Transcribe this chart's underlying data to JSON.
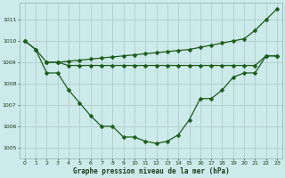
{
  "title": "Graphe pression niveau de la mer (hPa)",
  "background_color": "#cdeaea",
  "grid_color": "#b0cccc",
  "line_color": "#1a5c1a",
  "xlim": [
    -0.5,
    23.5
  ],
  "ylim": [
    1004.5,
    1011.8
  ],
  "yticks": [
    1005,
    1006,
    1007,
    1008,
    1009,
    1010,
    1011
  ],
  "xticks": [
    0,
    1,
    2,
    3,
    4,
    5,
    6,
    7,
    8,
    9,
    10,
    11,
    12,
    13,
    14,
    15,
    16,
    17,
    18,
    19,
    20,
    21,
    22,
    23
  ],
  "line1_x": [
    0,
    1,
    2,
    3,
    4,
    5,
    6,
    7,
    8,
    9,
    10,
    11,
    12,
    13,
    14,
    15,
    16,
    17,
    18,
    19,
    20,
    21,
    22,
    23
  ],
  "line1_y": [
    1010.0,
    1009.6,
    1009.0,
    1009.0,
    1009.05,
    1009.1,
    1009.15,
    1009.2,
    1009.25,
    1009.3,
    1009.35,
    1009.4,
    1009.45,
    1009.5,
    1009.55,
    1009.6,
    1009.7,
    1009.8,
    1009.9,
    1010.0,
    1010.1,
    1010.5,
    1011.0,
    1011.5
  ],
  "line2_x": [
    2,
    3,
    4,
    5,
    6,
    7,
    8,
    9,
    10,
    11,
    12,
    13,
    14,
    15,
    16,
    17,
    18,
    19,
    20,
    21,
    22,
    23
  ],
  "line2_y": [
    1009.0,
    1009.0,
    1008.85,
    1008.85,
    1008.85,
    1008.85,
    1008.85,
    1008.85,
    1008.85,
    1008.85,
    1008.85,
    1008.85,
    1008.85,
    1008.85,
    1008.85,
    1008.85,
    1008.85,
    1008.85,
    1008.85,
    1008.85,
    1009.3,
    1009.3
  ],
  "line3_x": [
    0,
    1,
    2,
    3,
    4,
    5,
    6,
    7,
    8,
    9,
    10,
    11,
    12,
    13,
    14,
    15,
    16,
    17,
    18,
    19,
    20,
    21,
    22,
    23
  ],
  "line3_y": [
    1010.0,
    1009.6,
    1008.5,
    1008.5,
    1007.7,
    1007.1,
    1006.5,
    1006.0,
    1006.0,
    1005.5,
    1005.5,
    1005.3,
    1005.2,
    1005.3,
    1005.6,
    1006.3,
    1007.3,
    1007.3,
    1007.7,
    1008.3,
    1008.5,
    1008.5,
    1009.3,
    1009.3
  ]
}
